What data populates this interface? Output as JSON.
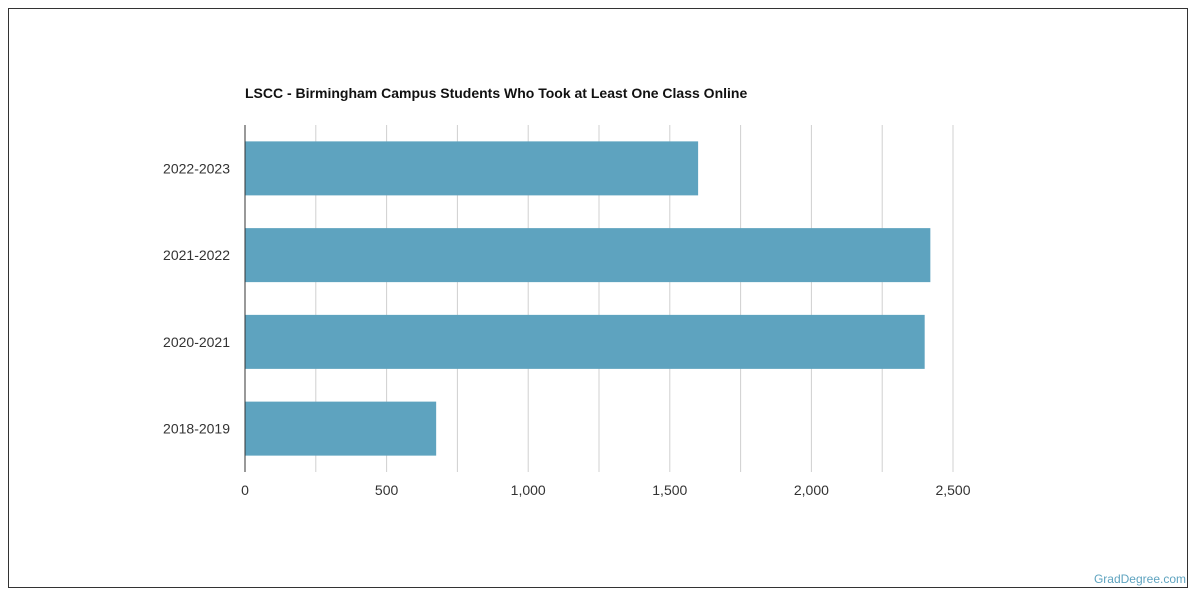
{
  "chart_data": {
    "type": "bar",
    "orientation": "horizontal",
    "title": "LSCC - Birmingham Campus Students Who Took at Least One Class Online",
    "categories": [
      "2022-2023",
      "2021-2022",
      "2020-2021",
      "2018-2019"
    ],
    "values": [
      1600,
      2420,
      2400,
      675
    ],
    "xlim": [
      0,
      2500
    ],
    "xticks": [
      0,
      500,
      1000,
      1500,
      2000,
      2500
    ],
    "xtick_labels": [
      "0",
      "500",
      "1,000",
      "1,500",
      "2,000",
      "2,500"
    ],
    "grid": true,
    "bar_color": "#5ea3bf",
    "grid_color": "#d0d0d0",
    "axis_color": "#333333"
  },
  "watermark": "GradDegree.com"
}
